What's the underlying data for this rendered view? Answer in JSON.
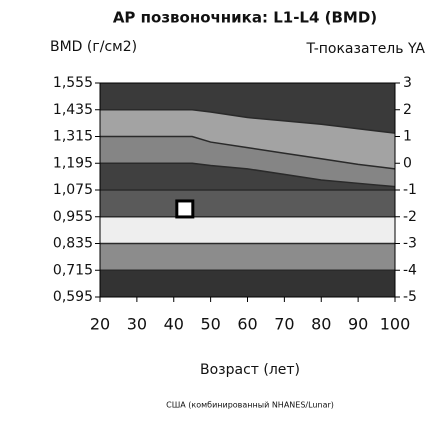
{
  "chart_data": {
    "type": "reference_bands",
    "title": "AP позвоночника: L1-L4 (BMD)",
    "y_axis_label": "BMD (г/см2)",
    "y2_axis_label": "T-показатель YA",
    "x_axis_label": "Возраст (лет)",
    "footnote": "США (комбинированный NHANES/Lunar)",
    "xlim": [
      20,
      100
    ],
    "xticks": [
      20,
      30,
      40,
      50,
      60,
      70,
      80,
      90,
      100
    ],
    "ylim": [
      0.595,
      1.555
    ],
    "yticks": [
      {
        "value": 0.595,
        "label": "0,595"
      },
      {
        "value": 0.715,
        "label": "0,715"
      },
      {
        "value": 0.835,
        "label": "0,835"
      },
      {
        "value": 0.955,
        "label": "0,955"
      },
      {
        "value": 1.075,
        "label": "1,075"
      },
      {
        "value": 1.195,
        "label": "1,195"
      },
      {
        "value": 1.315,
        "label": "1,315"
      },
      {
        "value": 1.435,
        "label": "1,435"
      },
      {
        "value": 1.555,
        "label": "1,555"
      }
    ],
    "y2lim": [
      -5,
      3
    ],
    "y2ticks": [
      -5,
      -4,
      -3,
      -2,
      -1,
      0,
      1,
      2,
      3
    ],
    "x": [
      20,
      30,
      40,
      45,
      50,
      60,
      70,
      80,
      90,
      100
    ],
    "series": [
      {
        "color": "#2a2a2a",
        "values": [
          1.435,
          1.435,
          1.435,
          1.435,
          1.425,
          1.4,
          1.385,
          1.37,
          1.35,
          1.33
        ]
      },
      {
        "color": "#2a2a2a",
        "values": [
          1.315,
          1.315,
          1.315,
          1.315,
          1.29,
          1.265,
          1.24,
          1.215,
          1.19,
          1.17
        ]
      },
      {
        "color": "#2a2a2a",
        "values": [
          1.195,
          1.195,
          1.195,
          1.195,
          1.185,
          1.17,
          1.145,
          1.12,
          1.105,
          1.09
        ]
      },
      {
        "color": "#2a2a2a",
        "values": [
          1.075,
          1.075,
          1.075,
          1.075,
          1.075,
          1.075,
          1.075,
          1.075,
          1.075,
          1.075
        ]
      },
      {
        "color": "#2a2a2a",
        "values": [
          0.955,
          0.955,
          0.955,
          0.955,
          0.955,
          0.955,
          0.955,
          0.955,
          0.955,
          0.955
        ]
      },
      {
        "color": "#2a2a2a",
        "values": [
          0.835,
          0.835,
          0.835,
          0.835,
          0.835,
          0.835,
          0.835,
          0.835,
          0.835,
          0.835
        ]
      },
      {
        "color": "#2a2a2a",
        "values": [
          0.715,
          0.715,
          0.715,
          0.715,
          0.715,
          0.715,
          0.715,
          0.715,
          0.715,
          0.715
        ]
      }
    ],
    "band_colors": [
      "#3a3a3a",
      "#a3a3a3",
      "#858585",
      "#404040",
      "#5a5a5a",
      "#eeeeee",
      "#8c8c8c",
      "#333333"
    ],
    "point": {
      "x": 43,
      "y": 0.99
    }
  }
}
